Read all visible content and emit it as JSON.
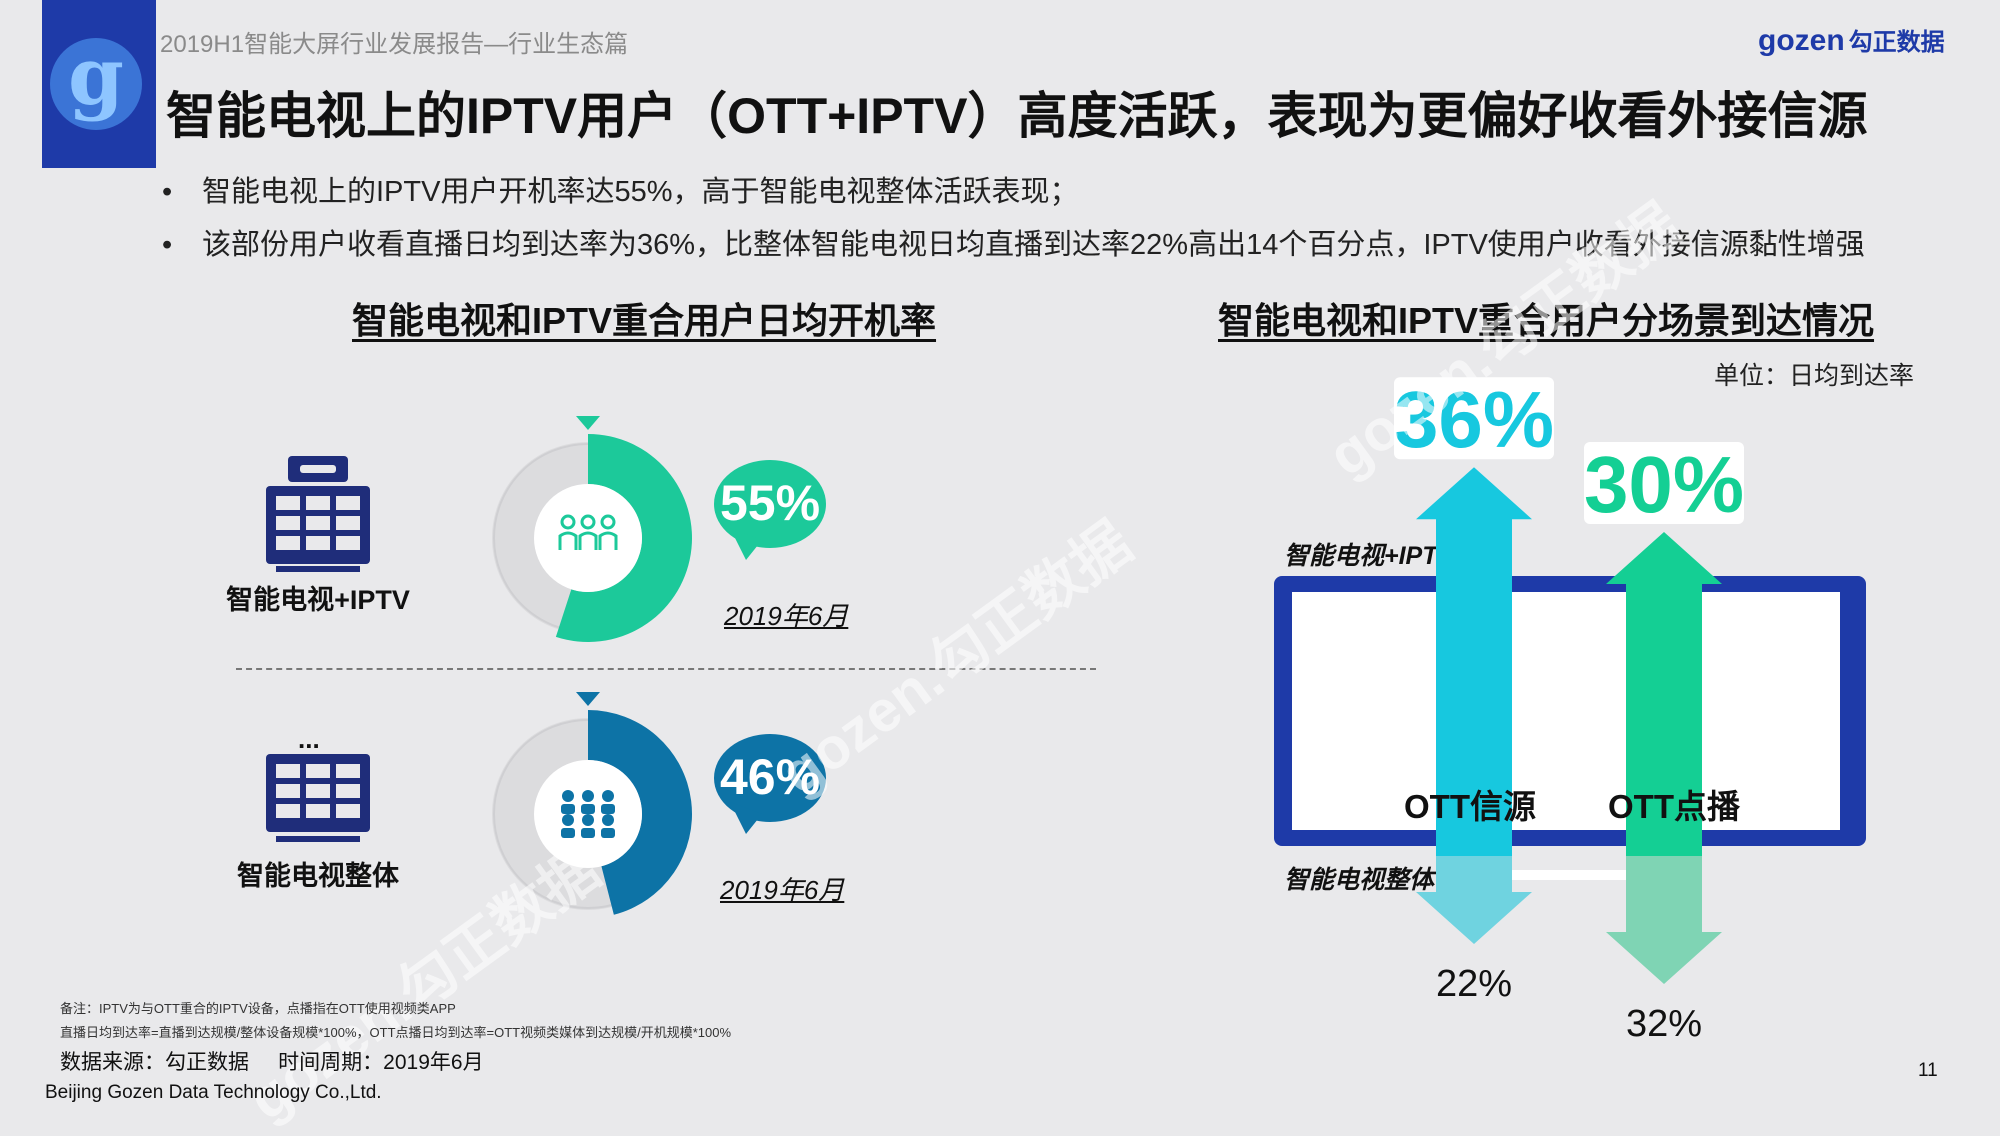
{
  "header": {
    "report_name": "2019H1智能大屏行业发展报告—行业生态篇",
    "brand": "gozen",
    "brand_cn": "勾正数据",
    "title": "智能电视上的IPTV用户（OTT+IPTV）高度活跃，表现为更偏好收看外接信源"
  },
  "bullets": [
    "智能电视上的IPTV用户开机率达55%，高于智能电视整体活跃表现；",
    "该部份用户收看直播日均到达率为36%，比整体智能电视日均直播到达率22%高出14个百分点，IPTV使用户收看外接信源黏性增强"
  ],
  "left_panel": {
    "title": "智能电视和IPTV重合用户日均开机率",
    "rows": [
      {
        "label": "智能电视+IPTV",
        "value_label": "55%",
        "date": "2019年6月",
        "color": "#1cc99a",
        "icon": "people-outline-icon",
        "device_icon": "set-top-box-icon"
      },
      {
        "label": "智能电视整体",
        "value_label": "46%",
        "date": "2019年6月",
        "color": "#0d73a6",
        "icon": "people-group-icon",
        "device_icon": "tv-grid-icon",
        "ellipsis": "..."
      }
    ]
  },
  "right_panel": {
    "title": "智能电视和IPTV重合用户分场景到达情况",
    "unit": "单位：日均到达率",
    "screen_label_top": "智能电视+IPTV",
    "screen_label_bottom": "智能电视整体",
    "arrow_labels": [
      "OTT信源",
      "OTT点播"
    ],
    "top_value_labels": [
      "36%",
      "30%"
    ],
    "bottom_value_labels": [
      "22%",
      "32%"
    ]
  },
  "chart_data": [
    {
      "type": "pie",
      "title": "智能电视和IPTV重合用户日均开机率",
      "categories": [
        "智能电视+IPTV",
        "智能电视整体"
      ],
      "values": [
        55,
        46
      ],
      "unit": "%",
      "date": "2019年6月"
    },
    {
      "type": "bar",
      "title": "智能电视和IPTV重合用户分场景到达情况",
      "ylabel": "日均到达率",
      "categories": [
        "OTT信源",
        "OTT点播"
      ],
      "series": [
        {
          "name": "智能电视+IPTV",
          "values": [
            36,
            30
          ]
        },
        {
          "name": "智能电视整体",
          "values": [
            22,
            32
          ]
        }
      ],
      "unit": "%"
    }
  ],
  "colors": {
    "accent_blue": "#1e3aa8",
    "teal": "#1cc99a",
    "dark_teal": "#0d73a6",
    "cyan": "#17c8df",
    "green": "#14cf94"
  },
  "footer": {
    "note_line1": "备注：IPTV为与OTT重合的IPTV设备，点播指在OTT使用视频类APP",
    "note_line2": "直播日均到达率=直播到达规模/整体设备规模*100%，OTT点播日均到达率=OTT视频类媒体到达规模/开机规模*100%",
    "source": "数据来源：勾正数据     时间周期：2019年6月",
    "company": "Beijing Gozen Data Technology Co.,Ltd.",
    "page_number": "11"
  },
  "watermark": "gozen.勾正数据"
}
